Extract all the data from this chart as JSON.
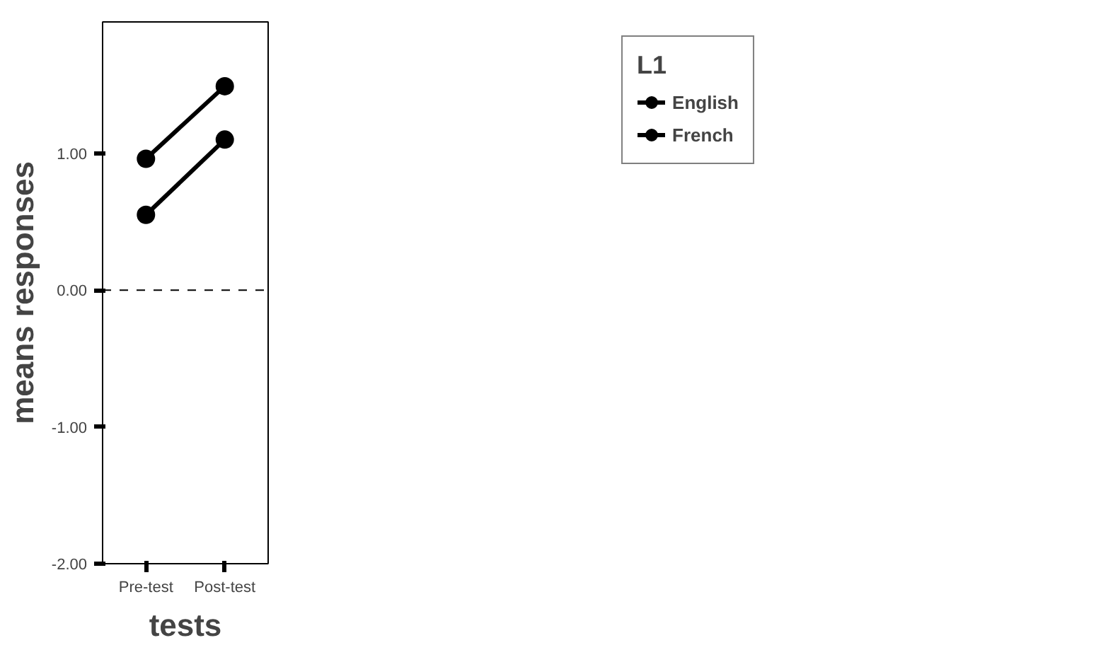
{
  "chart_data": {
    "type": "line",
    "xlabel": "tests",
    "ylabel": "means responses",
    "legend_title": "L1",
    "categories": [
      "Pre-test",
      "Post-test"
    ],
    "series": [
      {
        "name": "English",
        "color": "#000000",
        "values": [
          0.55,
          1.1
        ]
      },
      {
        "name": "French",
        "color": "#000000",
        "values": [
          0.96,
          1.49
        ]
      }
    ],
    "ylim": [
      -2,
      1.96
    ],
    "yticks": [
      {
        "value": 1,
        "label": "1.00"
      },
      {
        "value": 0,
        "label": "0.00"
      },
      {
        "value": -1,
        "label": "-1.00"
      },
      {
        "value": -2,
        "label": "-2.00"
      }
    ],
    "ref_lines": [
      {
        "axis": "y",
        "value": 0,
        "label": null,
        "line_style": "dashed",
        "color": "#000000"
      }
    ],
    "grid": false,
    "legend": "top right",
    "marker": "circle",
    "line_style": "solid"
  }
}
